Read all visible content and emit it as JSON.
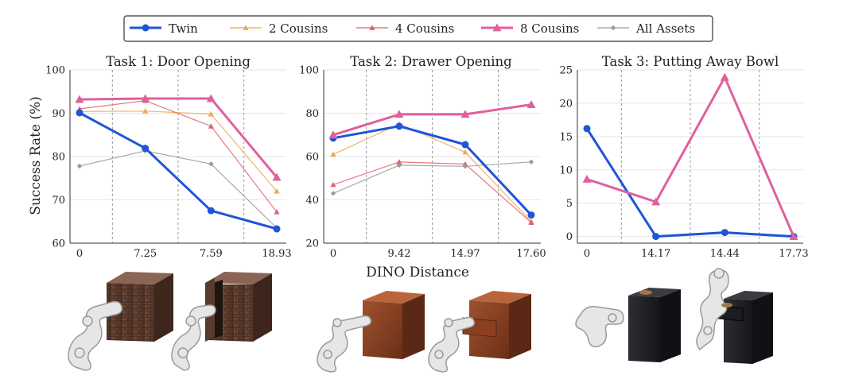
{
  "colors": {
    "twin": "#1f55d6",
    "cousins2": "#f2a64a",
    "cousins4": "#e0626e",
    "cousins8": "#e0609e",
    "all_assets": "#9a9a9a",
    "grid": "#e6e6e6",
    "dashed": "#9a9a9a"
  },
  "legend": {
    "items": [
      {
        "label": "Twin",
        "color": "#1f55d6",
        "marker": "circle",
        "width": 3
      },
      {
        "label": "2 Cousins",
        "color": "#f2a64a",
        "marker": "triangle",
        "width": 1.2
      },
      {
        "label": "4 Cousins",
        "color": "#e0626e",
        "marker": "triangle",
        "width": 1.2
      },
      {
        "label": "8 Cousins",
        "color": "#e0609e",
        "marker": "triangle",
        "width": 3
      },
      {
        "label": "All Assets",
        "color": "#9a9a9a",
        "marker": "diamond",
        "width": 1.2
      }
    ]
  },
  "shared": {
    "ylabel": "Success Rate (%)",
    "xlabel": "DINO Distance"
  },
  "chart_data": [
    {
      "type": "line",
      "title": "Task 1: Door Opening",
      "x": [
        "0",
        "7.25",
        "7.59",
        "18.93"
      ],
      "ylim": [
        60,
        100
      ],
      "yticks": [
        60,
        70,
        80,
        90,
        100
      ],
      "grid": true,
      "series": [
        {
          "name": "Twin",
          "values": [
            90.1,
            81.9,
            67.5,
            63.3
          ]
        },
        {
          "name": "2 Cousins",
          "values": [
            90.4,
            90.5,
            89.8,
            72.0
          ]
        },
        {
          "name": "4 Cousins",
          "values": [
            91.0,
            92.9,
            87.0,
            67.2
          ]
        },
        {
          "name": "8 Cousins",
          "values": [
            93.2,
            93.4,
            93.4,
            75.2
          ]
        },
        {
          "name": "All Assets",
          "values": [
            77.8,
            81.3,
            78.3,
            63.5
          ]
        }
      ]
    },
    {
      "type": "line",
      "title": "Task 2: Drawer Opening",
      "x": [
        "0",
        "9.42",
        "14.97",
        "17.60"
      ],
      "ylim": [
        20,
        100
      ],
      "yticks": [
        20,
        40,
        60,
        80,
        100
      ],
      "grid": true,
      "series": [
        {
          "name": "Twin",
          "values": [
            68.5,
            74.0,
            65.5,
            33.0
          ]
        },
        {
          "name": "2 Cousins",
          "values": [
            61.0,
            75.0,
            62.0,
            30.0
          ]
        },
        {
          "name": "4 Cousins",
          "values": [
            47.0,
            57.5,
            56.5,
            29.5
          ]
        },
        {
          "name": "8 Cousins",
          "values": [
            70.0,
            79.5,
            79.5,
            84.0
          ]
        },
        {
          "name": "All Assets",
          "values": [
            43.0,
            56.0,
            55.5,
            57.5
          ]
        }
      ]
    },
    {
      "type": "line",
      "title": "Task 3: Putting Away Bowl",
      "x": [
        "0",
        "14.17",
        "14.44",
        "17.73"
      ],
      "ylim": [
        -1,
        25
      ],
      "yticks": [
        0,
        5,
        10,
        15,
        20,
        25
      ],
      "grid": true,
      "series": [
        {
          "name": "Twin",
          "values": [
            16.2,
            0.0,
            0.6,
            0.0
          ]
        },
        {
          "name": "8 Cousins",
          "values": [
            8.6,
            5.2,
            23.9,
            0.0
          ]
        }
      ]
    }
  ],
  "illustrations": [
    {
      "name": "door-cabinet-closed",
      "cabinet": "brick"
    },
    {
      "name": "door-cabinet-open",
      "cabinet": "brick"
    },
    {
      "name": "drawer-cabinet-closed",
      "cabinet": "wood"
    },
    {
      "name": "drawer-cabinet-open",
      "cabinet": "wood"
    },
    {
      "name": "bowl-cabinet-closed",
      "cabinet": "black"
    },
    {
      "name": "bowl-cabinet-open",
      "cabinet": "black"
    }
  ]
}
